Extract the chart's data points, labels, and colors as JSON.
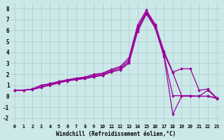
{
  "xlabel": "Windchill (Refroidissement éolien,°C)",
  "ylabel": "",
  "background_color": "#cce8e8",
  "grid_color": "#aacccc",
  "line_color": "#990099",
  "xlim": [
    -0.5,
    23.5
  ],
  "ylim": [
    -2.5,
    8.5
  ],
  "xticks": [
    0,
    1,
    2,
    3,
    4,
    5,
    6,
    7,
    8,
    9,
    10,
    11,
    12,
    13,
    14,
    15,
    16,
    17,
    18,
    19,
    20,
    21,
    22,
    23
  ],
  "yticks": [
    -2,
    -1,
    0,
    1,
    2,
    3,
    4,
    5,
    6,
    7,
    8
  ],
  "series": [
    [
      0.55,
      0.55,
      0.65,
      1.0,
      1.1,
      1.3,
      1.5,
      1.65,
      1.75,
      2.0,
      2.1,
      2.45,
      2.7,
      3.5,
      6.5,
      7.85,
      6.55,
      4.1,
      2.2,
      2.5,
      2.5,
      0.55,
      0.65,
      -0.15
    ],
    [
      0.55,
      0.55,
      0.65,
      1.0,
      1.15,
      1.35,
      1.5,
      1.6,
      1.7,
      1.9,
      2.05,
      2.35,
      2.6,
      3.3,
      6.3,
      7.7,
      6.4,
      3.85,
      2.15,
      0.05,
      0.0,
      0.0,
      0.0,
      -0.15
    ],
    [
      0.55,
      0.55,
      0.65,
      0.85,
      1.05,
      1.25,
      1.4,
      1.55,
      1.65,
      1.8,
      1.95,
      2.25,
      2.45,
      3.15,
      6.1,
      7.6,
      6.3,
      3.7,
      0.05,
      0.05,
      0.05,
      0.0,
      0.0,
      -0.2
    ],
    [
      0.55,
      0.55,
      0.6,
      0.8,
      1.0,
      1.2,
      1.4,
      1.5,
      1.6,
      1.75,
      1.9,
      2.2,
      2.4,
      3.0,
      5.9,
      7.5,
      6.2,
      3.6,
      -1.65,
      0.0,
      0.0,
      0.0,
      0.55,
      -0.2
    ]
  ]
}
